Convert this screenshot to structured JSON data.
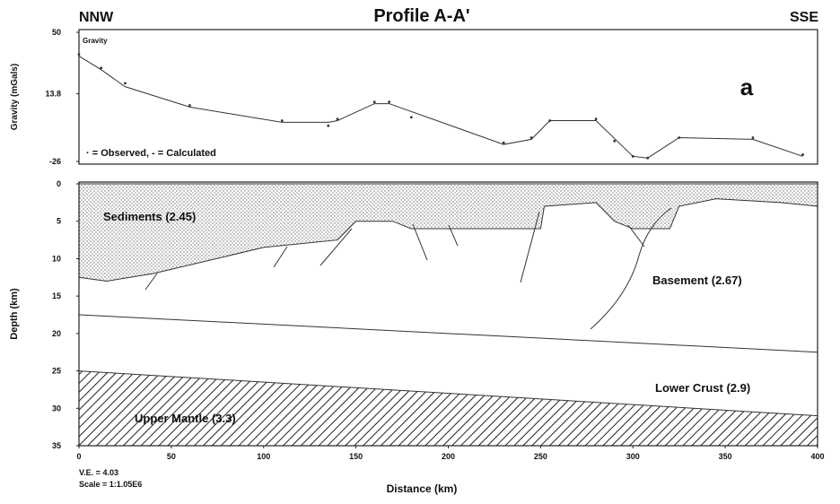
{
  "chart_data": [
    {
      "type": "line",
      "title": "Profile A-A'",
      "annotations": [
        "NNW",
        "SSE",
        "a"
      ],
      "inset_label": "Gravity",
      "legend_text": "· = Observed, - = Calculated",
      "ylabel": "Gravity (mGals)",
      "xlim": [
        0,
        400
      ],
      "ylim": [
        -26,
        50
      ],
      "yticks": [
        50,
        13.8,
        -26
      ],
      "series": [
        {
          "style": "line",
          "color": "#333333",
          "x": [
            0,
            12,
            25,
            60,
            110,
            135,
            140,
            160,
            168,
            230,
            245,
            255,
            280,
            300,
            308,
            325,
            365,
            392
          ],
          "values": [
            36,
            28,
            18,
            6,
            -3,
            -3,
            -2,
            8,
            8,
            -16,
            -13,
            -2,
            -2,
            -23,
            -24,
            -12,
            -13,
            -23
          ]
        },
        {
          "style": "markers",
          "color": "#333333",
          "x": [
            0,
            12,
            25,
            60,
            110,
            135,
            140,
            160,
            168,
            180,
            230,
            245,
            255,
            280,
            290,
            300,
            308,
            325,
            365,
            392
          ],
          "values": [
            37,
            29,
            20,
            7,
            -2,
            -5,
            -1,
            9,
            9,
            0,
            -15,
            -12,
            -2,
            -1,
            -14,
            -23,
            -24,
            -12,
            -12,
            -22
          ]
        }
      ]
    },
    {
      "type": "area",
      "xlabel": "Distance (km)",
      "ylabel": "Depth (km)",
      "notes": [
        "V.E. = 4.03",
        "Scale = 1:1.05E6"
      ],
      "xlim": [
        0,
        400
      ],
      "xticks": [
        0,
        50,
        100,
        150,
        200,
        250,
        300,
        350,
        400
      ],
      "ylim": [
        0,
        35
      ],
      "yticks": [
        0,
        5,
        10,
        15,
        20,
        25,
        30,
        35
      ],
      "series": [
        {
          "name": "Sediments (2.45)",
          "x": [
            0,
            400
          ],
          "values": [
            0,
            0
          ]
        },
        {
          "name": "Basement (2.67)",
          "x": [
            0,
            15,
            40,
            100,
            140,
            150,
            170,
            180,
            250,
            252,
            280,
            290,
            300,
            320,
            325,
            345,
            380,
            400
          ],
          "values": [
            12.5,
            13,
            12,
            8.5,
            7.5,
            5,
            5,
            6,
            6,
            3,
            2.5,
            5,
            6,
            6,
            3,
            2,
            2.5,
            3
          ]
        },
        {
          "name": "Lower Crust (2.9)",
          "x": [
            0,
            400
          ],
          "values": [
            17.5,
            22.5
          ]
        },
        {
          "name": "Upper Mantle (3.3)",
          "x": [
            0,
            400
          ],
          "values": [
            25,
            31
          ]
        }
      ]
    }
  ]
}
